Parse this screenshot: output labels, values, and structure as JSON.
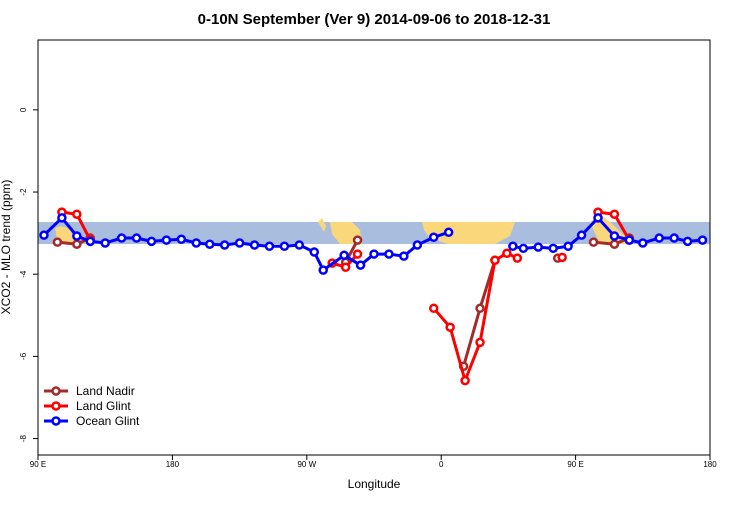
{
  "chart_data": {
    "type": "line",
    "title": "0-10N September (Ver 9)   2014-09-06 to 2018-12-31",
    "x_label": "Longitude",
    "y_label": "XCO2 - MLO trend (ppm)",
    "xlim": [
      90,
      540
    ],
    "xticks": [
      {
        "value": 90,
        "label": "90 E"
      },
      {
        "value": 180,
        "label": "180"
      },
      {
        "value": 270,
        "label": "90 W"
      },
      {
        "value": 360,
        "label": "0"
      },
      {
        "value": 450,
        "label": "90 E"
      },
      {
        "value": 540,
        "label": "180"
      }
    ],
    "ylim": [
      -8.4,
      1.7
    ],
    "yticks": [
      0,
      -2,
      -4,
      -6,
      -8
    ],
    "legend": "bottom-left",
    "series": [
      {
        "name": "Land Nadir",
        "color": "#a52a2a",
        "x": [
          103,
          116,
          125,
          200,
          296,
          304,
          340,
          375,
          386,
          396,
          420,
          438,
          450,
          462,
          476,
          486
        ],
        "values": [
          -3.22,
          -3.27,
          -3.12,
          null,
          -3.71,
          -3.17,
          null,
          -6.24,
          -4.83,
          -3.66,
          null,
          -3.61,
          null,
          -3.22,
          -3.27,
          -3.12
        ]
      },
      {
        "name": "Land Glint",
        "color": "#ff0000",
        "x": [
          106,
          116,
          125,
          200,
          287,
          296,
          304,
          330,
          355,
          366,
          376,
          386,
          396,
          404,
          411,
          425,
          441,
          452,
          465,
          476,
          486
        ],
        "values": [
          -2.49,
          -2.54,
          -3.17,
          null,
          -3.73,
          -3.83,
          -3.51,
          null,
          -4.83,
          -5.29,
          -6.59,
          -5.66,
          -3.66,
          -3.49,
          -3.61,
          null,
          -3.59,
          null,
          -2.49,
          -2.54,
          -3.17
        ]
      },
      {
        "name": "Ocean Glint",
        "color": "#0000ff",
        "x": [
          94,
          106,
          116,
          125,
          135,
          146,
          156,
          166,
          176,
          186,
          196,
          205,
          215,
          225,
          235,
          245,
          255,
          265,
          275,
          281,
          295,
          306,
          315,
          325,
          335,
          344,
          355,
          365,
          385,
          408,
          415,
          425,
          435,
          445,
          454,
          465,
          476,
          486,
          495,
          506,
          516,
          525,
          535
        ],
        "values": [
          -3.05,
          -2.63,
          -3.07,
          -3.2,
          -3.24,
          -3.12,
          -3.12,
          -3.2,
          -3.17,
          -3.15,
          -3.24,
          -3.27,
          -3.29,
          -3.24,
          -3.29,
          -3.32,
          -3.32,
          -3.29,
          -3.46,
          -3.9,
          -3.54,
          -3.78,
          -3.51,
          -3.51,
          -3.56,
          -3.29,
          -3.1,
          -2.98,
          null,
          -3.32,
          -3.37,
          -3.34,
          -3.37,
          -3.32,
          -3.05,
          -2.63,
          -3.07,
          -3.17,
          -3.24,
          -3.12,
          -3.12,
          -3.2,
          -3.17
        ]
      }
    ]
  }
}
